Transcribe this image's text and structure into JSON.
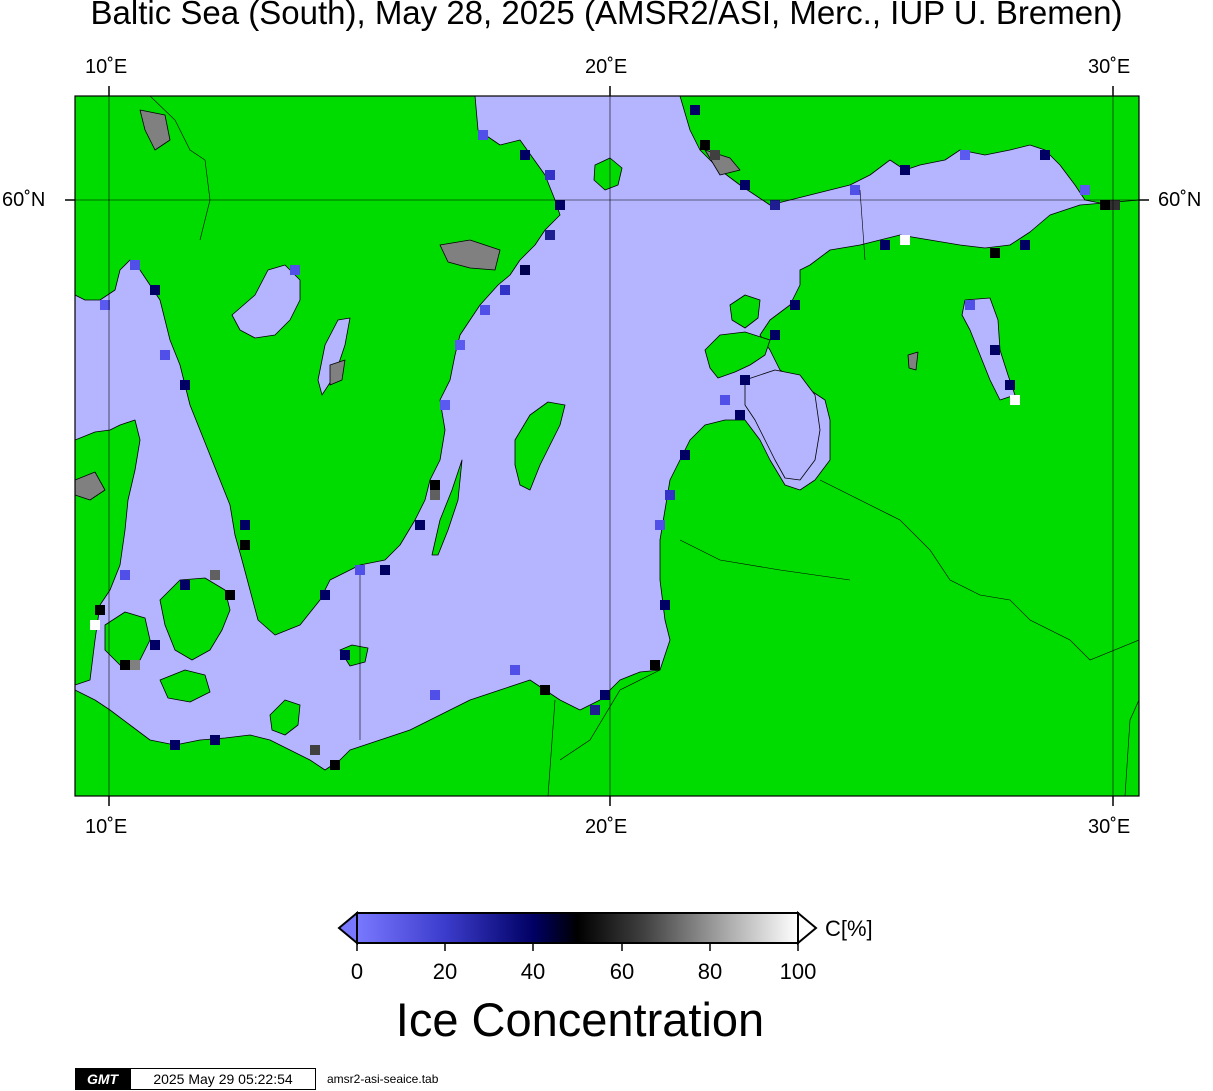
{
  "title": "Baltic Sea (South), May 28, 2025 (AMSR2/ASI, Merc., IUP U. Bremen)",
  "map": {
    "longitude_labels": [
      "10˚E",
      "20˚E",
      "30˚E"
    ],
    "latitude_label": "60˚N",
    "colors": {
      "land": "#00dc00",
      "open_water": "#b4b4ff",
      "gridline": "#000000",
      "coast_outline": "#000000",
      "unresolved_land": "#808080"
    }
  },
  "colorbar": {
    "ticks": [
      "0",
      "20",
      "40",
      "60",
      "80",
      "100"
    ],
    "unit": "C[%]",
    "title": "Ice Concentration",
    "color_stops": [
      "#7878ff",
      "#000064",
      "#000000",
      "#808080",
      "#ffffff"
    ]
  },
  "footer": {
    "logo": "GMT",
    "timestamp": "2025 May 29 05:22:54",
    "filename": "amsr2-asi-seaice.tab"
  }
}
